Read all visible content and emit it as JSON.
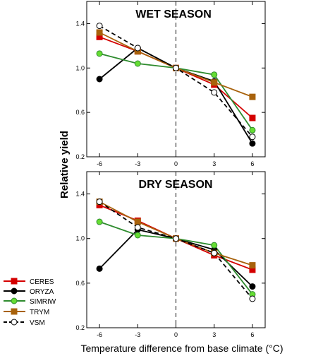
{
  "chart_data": {
    "type": "line",
    "xlabel": "Temperature difference from base climate  (°C)",
    "ylabel": "Relative yield",
    "x": [
      -6,
      -3,
      0,
      3,
      6
    ],
    "x_tick_labels": [
      "-6",
      "-3",
      "0",
      "3",
      "6"
    ],
    "xlim": [
      -7,
      7
    ],
    "ylim": [
      0.2,
      1.6
    ],
    "y_ticks": [
      0.2,
      0.6,
      1.0,
      1.4
    ],
    "y_tick_labels": [
      "0.2",
      "0.6",
      "1.0",
      "1.4"
    ],
    "reference_line_x": 0,
    "legend": {
      "placement": "lower-left, outside",
      "entries": [
        "CERES",
        "ORYZA",
        "SIMRIW",
        "TRYM",
        "VSM"
      ]
    },
    "series_styles": [
      {
        "name": "CERES",
        "color": "#d40000",
        "marker": "square",
        "dashed": false,
        "fill": "#d40000"
      },
      {
        "name": "ORYZA",
        "color": "#000000",
        "marker": "circle",
        "dashed": false,
        "fill": "#000000"
      },
      {
        "name": "SIMRIW",
        "color": "#2e8b2e",
        "marker": "circle",
        "dashed": false,
        "fill": "#66dd33"
      },
      {
        "name": "TRYM",
        "color": "#a8620c",
        "marker": "square",
        "dashed": false,
        "fill": "#a8620c"
      },
      {
        "name": "VSM",
        "color": "#000000",
        "marker": "circle",
        "dashed": true,
        "fill": "#ffffff"
      }
    ],
    "panels": [
      {
        "title": "WET  SEASON",
        "series": [
          {
            "name": "CERES",
            "values": [
              1.28,
              1.15,
              1.0,
              0.85,
              0.55
            ]
          },
          {
            "name": "ORYZA",
            "values": [
              0.9,
              1.18,
              1.0,
              0.88,
              0.32
            ]
          },
          {
            "name": "SIMRIW",
            "values": [
              1.13,
              1.04,
              1.0,
              0.94,
              0.44
            ]
          },
          {
            "name": "TRYM",
            "values": [
              1.32,
              1.15,
              1.0,
              0.87,
              0.74
            ]
          },
          {
            "name": "VSM",
            "values": [
              1.38,
              1.18,
              1.0,
              0.78,
              0.38
            ]
          }
        ]
      },
      {
        "title": "DRY SEASON",
        "series": [
          {
            "name": "CERES",
            "values": [
              1.3,
              1.16,
              1.0,
              0.85,
              0.72
            ]
          },
          {
            "name": "ORYZA",
            "values": [
              0.73,
              1.08,
              1.0,
              0.9,
              0.57
            ]
          },
          {
            "name": "SIMRIW",
            "values": [
              1.15,
              1.03,
              1.0,
              0.94,
              0.5
            ]
          },
          {
            "name": "TRYM",
            "values": [
              1.33,
              1.15,
              1.0,
              0.87,
              0.76
            ]
          },
          {
            "name": "VSM",
            "values": [
              1.33,
              1.1,
              1.0,
              0.87,
              0.46
            ]
          }
        ]
      }
    ]
  }
}
